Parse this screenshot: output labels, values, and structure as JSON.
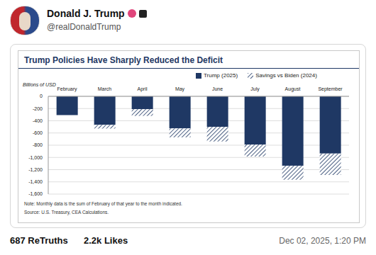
{
  "post": {
    "name": "Donald J. Trump",
    "handle": "@realDonaldTrump",
    "retruths": "687 ReTruths",
    "likes": "2.2k Likes",
    "date": "Dec 02, 2025, 1:20 PM"
  },
  "chart_data": {
    "type": "bar",
    "title": "Trump Policies Have Sharply Reduced the Deficit",
    "y_label": "Billions of USD",
    "notes": [
      "Note: Monthly data is the sum of February of that year to the month indicated.",
      "Source: U.S. Treasury, CEA Calculations."
    ],
    "categories": [
      "February",
      "March",
      "April",
      "May",
      "June",
      "July",
      "August",
      "September"
    ],
    "series": [
      {
        "name": "Trump (2025)",
        "color": "#1f3864",
        "values": [
          -307,
          -468,
          -210,
          -526,
          -499,
          -790,
          -1135,
          -937
        ]
      },
      {
        "name": "Savings vs Biden (2024)",
        "color": "#1f3864",
        "values": [
          0,
          -60,
          -110,
          -145,
          -240,
          -195,
          -230,
          -350
        ]
      }
    ],
    "stacked": true,
    "grid": true,
    "legend": "top",
    "ylim": [
      -1600,
      0
    ],
    "yticks": [
      {
        "value": -1600,
        "label": "-1,600"
      },
      {
        "value": -1400,
        "label": "-1,400"
      },
      {
        "value": -1200,
        "label": "-1,200"
      },
      {
        "value": -1000,
        "label": "-1,000"
      },
      -800,
      -600,
      -400,
      -200,
      0
    ]
  }
}
